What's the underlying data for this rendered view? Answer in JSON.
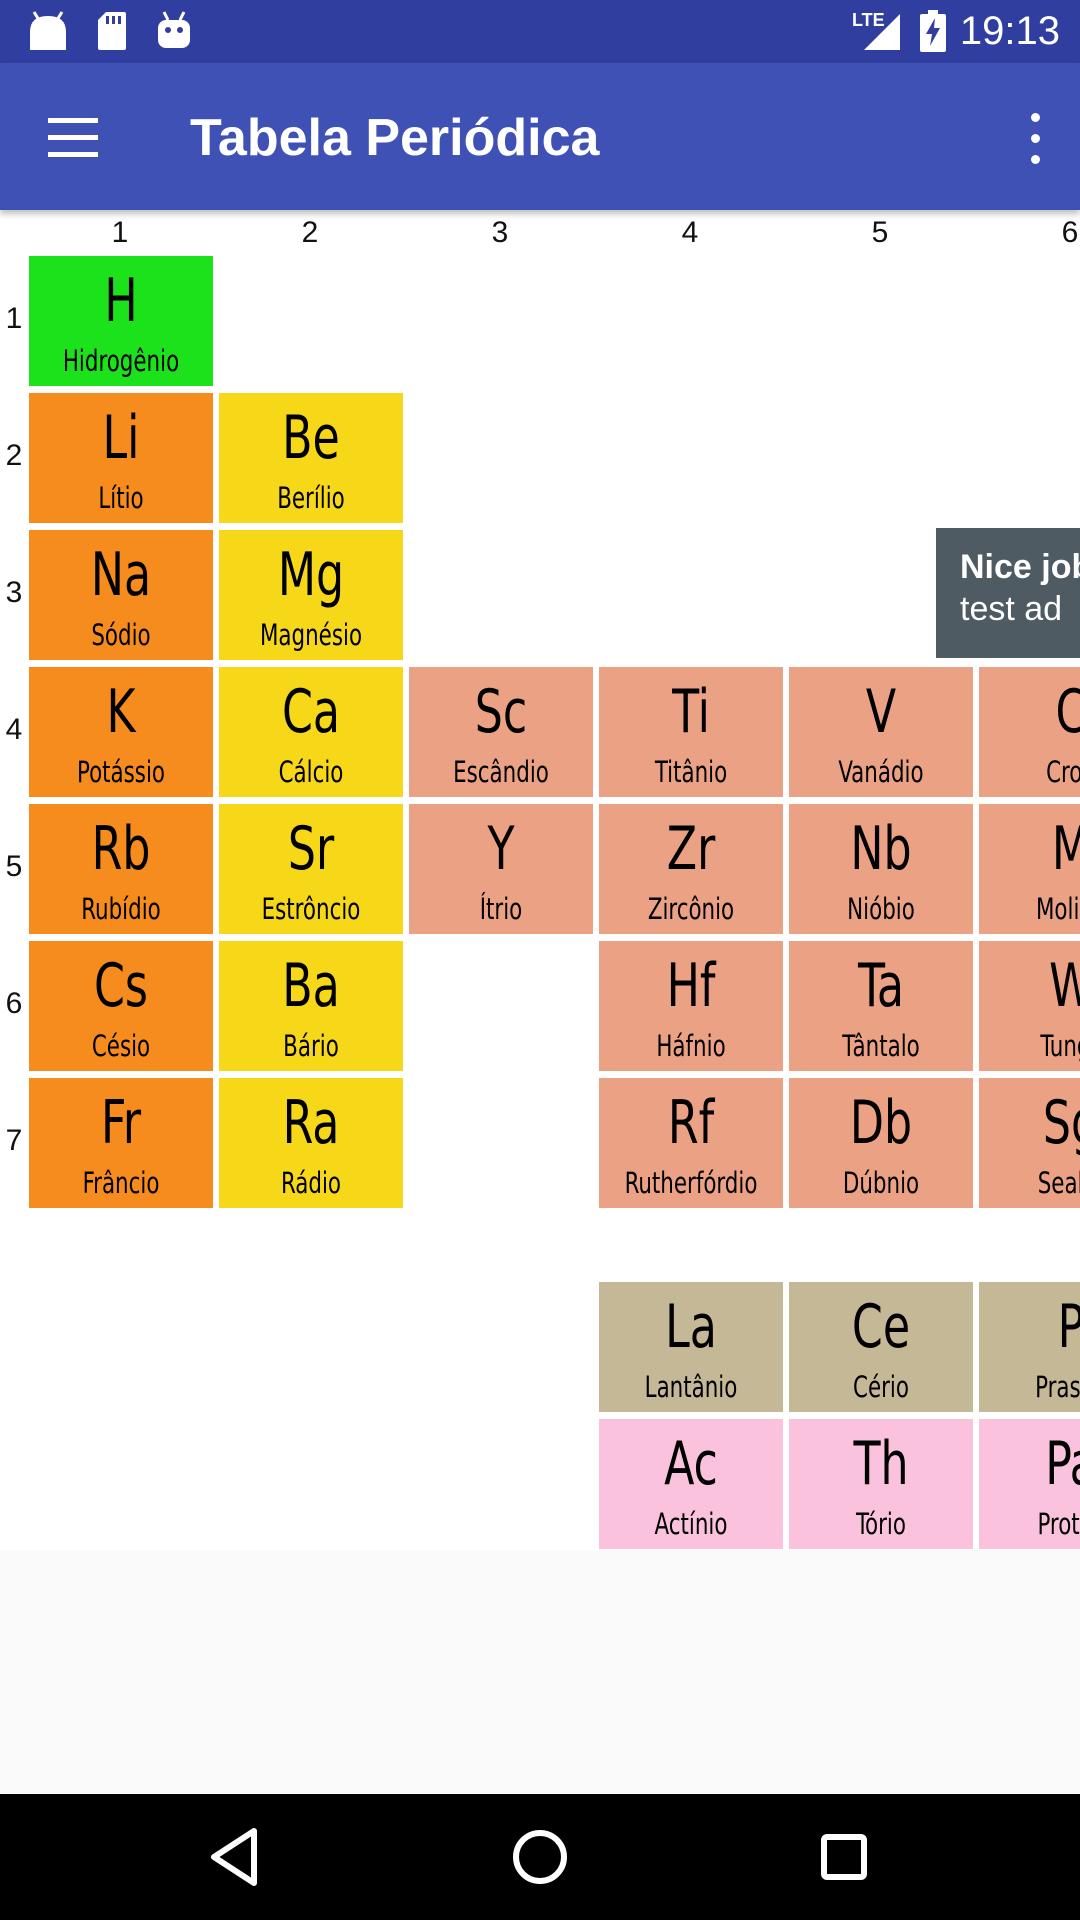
{
  "status_bar": {
    "time": "19:13",
    "network": "LTE",
    "icons": [
      "android-icon",
      "sd-card-icon",
      "android-debug-icon",
      "signal-icon",
      "battery-charging-icon"
    ]
  },
  "app_bar": {
    "title": "Tabela Periódica",
    "menu_icon": "hamburger-menu-icon",
    "overflow_icon": "more-vert-icon"
  },
  "table": {
    "column_numbers": [
      "1",
      "2",
      "3",
      "4",
      "5",
      "6"
    ],
    "row_numbers": [
      "1",
      "2",
      "3",
      "4",
      "5",
      "6",
      "7"
    ],
    "category_colors": {
      "hydrogen": "#1ce21c",
      "alkali_metal": "#f68c1e",
      "alkaline_earth_metal": "#f6d818",
      "transition_metal": "#eba184",
      "lanthanide": "#c5b896",
      "actinide": "#fbc2de"
    },
    "elements": {
      "h": {
        "symbol": "H",
        "name": "Hidrogênio"
      },
      "li": {
        "symbol": "Li",
        "name": "Lítio"
      },
      "be": {
        "symbol": "Be",
        "name": "Berílio"
      },
      "na": {
        "symbol": "Na",
        "name": "Sódio"
      },
      "mg": {
        "symbol": "Mg",
        "name": "Magnésio"
      },
      "k": {
        "symbol": "K",
        "name": "Potássio"
      },
      "ca": {
        "symbol": "Ca",
        "name": "Cálcio"
      },
      "sc": {
        "symbol": "Sc",
        "name": "Escândio"
      },
      "ti": {
        "symbol": "Ti",
        "name": "Titânio"
      },
      "v": {
        "symbol": "V",
        "name": "Vanádio"
      },
      "cr": {
        "symbol": "C",
        "name": "Cron"
      },
      "rb": {
        "symbol": "Rb",
        "name": "Rubídio"
      },
      "sr": {
        "symbol": "Sr",
        "name": "Estrôncio"
      },
      "y": {
        "symbol": "Y",
        "name": "Ítrio"
      },
      "zr": {
        "symbol": "Zr",
        "name": "Zircônio"
      },
      "nb": {
        "symbol": "Nb",
        "name": "Nióbio"
      },
      "mo": {
        "symbol": "M",
        "name": "Molibo"
      },
      "cs": {
        "symbol": "Cs",
        "name": "Césio"
      },
      "ba": {
        "symbol": "Ba",
        "name": "Bário"
      },
      "hf": {
        "symbol": "Hf",
        "name": "Háfnio"
      },
      "ta": {
        "symbol": "Ta",
        "name": "Tântalo"
      },
      "w": {
        "symbol": "W",
        "name": "Tungs"
      },
      "fr": {
        "symbol": "Fr",
        "name": "Frâncio"
      },
      "ra": {
        "symbol": "Ra",
        "name": "Rádio"
      },
      "rf": {
        "symbol": "Rf",
        "name": "Rutherfórdio"
      },
      "db": {
        "symbol": "Db",
        "name": "Dúbnio"
      },
      "sg": {
        "symbol": "Sg",
        "name": "Seabó"
      },
      "la": {
        "symbol": "La",
        "name": "Lantânio"
      },
      "ce": {
        "symbol": "Ce",
        "name": "Cério"
      },
      "pr": {
        "symbol": "P",
        "name": "Praseo"
      },
      "ac": {
        "symbol": "Ac",
        "name": "Actínio"
      },
      "th": {
        "symbol": "Th",
        "name": "Tório"
      },
      "pa": {
        "symbol": "Pa",
        "name": "Protac"
      }
    }
  },
  "ad": {
    "title": "Nice job",
    "subtitle": "test ad"
  },
  "nav_bar": {
    "back_icon": "back-triangle-icon",
    "home_icon": "home-circle-icon",
    "recents_icon": "recents-square-icon"
  }
}
